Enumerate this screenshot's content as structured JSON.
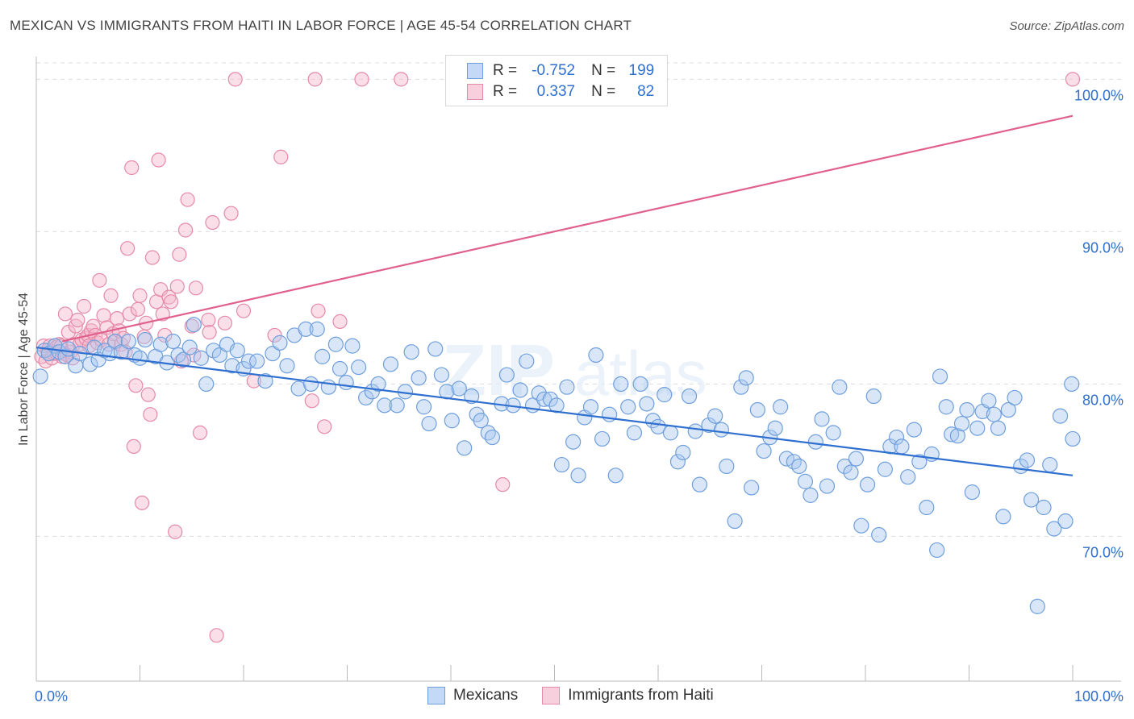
{
  "title": "MEXICAN VS IMMIGRANTS FROM HAITI IN LABOR FORCE | AGE 45-54 CORRELATION CHART",
  "source": "Source: ZipAtlas.com",
  "legend": {
    "rows": [
      {
        "r_label": "R =",
        "r_value": "-0.752",
        "n_label": "N =",
        "n_value": "199"
      },
      {
        "r_label": "R =",
        "r_value": "0.337",
        "n_label": "N =",
        "n_value": "82"
      }
    ]
  },
  "bottom_legend": [
    "Mexicans",
    "Immigrants from Haiti"
  ],
  "colors": {
    "blue_fill": "#a9c8f0",
    "blue_stroke": "#6f9fdc",
    "blue_line": "#2f6fcf",
    "pink_fill": "#f5b8cb",
    "pink_stroke": "#e58aa8",
    "pink_line": "#e0608e",
    "axis_label": "#2f6fcf",
    "grid": "#dcdcdc"
  },
  "chart_data": {
    "type": "scatter",
    "title": "MEXICAN VS IMMIGRANTS FROM HAITI IN LABOR FORCE | AGE 45-54 CORRELATION CHART",
    "xlabel": "",
    "ylabel": "In Labor Force | Age 45-54",
    "xlim": [
      0,
      100
    ],
    "ylim": [
      60.5,
      101.5
    ],
    "x_tick_labels": [
      "0.0%",
      "100.0%"
    ],
    "y_ticks": [
      70,
      80,
      90,
      100
    ],
    "y_tick_labels": [
      "70.0%",
      "80.0%",
      "90.0%",
      "100.0%"
    ],
    "grid": true,
    "legend_position": "top-center",
    "series": [
      {
        "name": "Mexicans",
        "color": "#a9c8f0",
        "trend": {
          "x": [
            0,
            100
          ],
          "y": [
            82.4,
            74.0
          ]
        },
        "points": [
          [
            0.4,
            80.5
          ],
          [
            0.8,
            82.2
          ],
          [
            1.2,
            82.0
          ],
          [
            1.8,
            82.5
          ],
          [
            2.2,
            82.1
          ],
          [
            2.8,
            81.8
          ],
          [
            3.1,
            82.3
          ],
          [
            3.8,
            81.2
          ],
          [
            4.2,
            82.0
          ],
          [
            5.2,
            81.3
          ],
          [
            5.6,
            82.4
          ],
          [
            6.0,
            81.6
          ],
          [
            6.6,
            82.2
          ],
          [
            7.1,
            82.0
          ],
          [
            7.6,
            82.8
          ],
          [
            8.2,
            82.1
          ],
          [
            8.9,
            82.8
          ],
          [
            9.5,
            81.9
          ],
          [
            10.0,
            81.7
          ],
          [
            10.5,
            82.9
          ],
          [
            11.5,
            81.8
          ],
          [
            12.0,
            82.6
          ],
          [
            12.6,
            81.4
          ],
          [
            13.2,
            82.8
          ],
          [
            13.7,
            81.9
          ],
          [
            14.2,
            81.6
          ],
          [
            14.8,
            82.4
          ],
          [
            15.2,
            83.9
          ],
          [
            15.9,
            81.7
          ],
          [
            16.4,
            80.0
          ],
          [
            17.1,
            82.2
          ],
          [
            17.7,
            81.9
          ],
          [
            18.4,
            82.6
          ],
          [
            18.9,
            81.2
          ],
          [
            19.4,
            82.2
          ],
          [
            20.0,
            81.0
          ],
          [
            20.5,
            81.5
          ],
          [
            21.3,
            81.5
          ],
          [
            22.1,
            80.2
          ],
          [
            22.8,
            82.0
          ],
          [
            23.5,
            82.7
          ],
          [
            24.2,
            81.2
          ],
          [
            24.9,
            83.2
          ],
          [
            25.3,
            79.7
          ],
          [
            26.0,
            83.6
          ],
          [
            26.5,
            80.0
          ],
          [
            27.1,
            83.6
          ],
          [
            27.6,
            81.8
          ],
          [
            28.2,
            79.8
          ],
          [
            28.9,
            82.6
          ],
          [
            29.3,
            81.0
          ],
          [
            29.9,
            80.1
          ],
          [
            30.5,
            82.5
          ],
          [
            31.1,
            81.1
          ],
          [
            31.8,
            79.1
          ],
          [
            32.4,
            79.5
          ],
          [
            33.0,
            80.0
          ],
          [
            33.6,
            78.6
          ],
          [
            34.2,
            81.3
          ],
          [
            34.8,
            78.6
          ],
          [
            35.6,
            79.5
          ],
          [
            36.2,
            82.1
          ],
          [
            36.9,
            80.4
          ],
          [
            37.4,
            78.5
          ],
          [
            37.9,
            77.4
          ],
          [
            38.5,
            82.3
          ],
          [
            39.1,
            80.6
          ],
          [
            39.6,
            79.5
          ],
          [
            40.1,
            77.6
          ],
          [
            40.8,
            79.7
          ],
          [
            41.3,
            75.8
          ],
          [
            42.0,
            79.2
          ],
          [
            42.5,
            78.0
          ],
          [
            42.9,
            77.6
          ],
          [
            43.6,
            76.8
          ],
          [
            44.0,
            76.5
          ],
          [
            44.9,
            78.7
          ],
          [
            45.4,
            80.6
          ],
          [
            46.0,
            78.6
          ],
          [
            46.7,
            79.6
          ],
          [
            47.3,
            81.5
          ],
          [
            47.9,
            78.6
          ],
          [
            48.5,
            79.4
          ],
          [
            49.0,
            79.0
          ],
          [
            49.6,
            79.0
          ],
          [
            50.2,
            78.6
          ],
          [
            50.7,
            74.7
          ],
          [
            51.2,
            79.8
          ],
          [
            51.8,
            76.2
          ],
          [
            52.3,
            74.0
          ],
          [
            52.9,
            77.8
          ],
          [
            53.5,
            78.5
          ],
          [
            54.0,
            81.9
          ],
          [
            54.6,
            76.4
          ],
          [
            55.3,
            78.0
          ],
          [
            55.9,
            74.0
          ],
          [
            56.4,
            80.0
          ],
          [
            57.1,
            78.5
          ],
          [
            57.7,
            76.8
          ],
          [
            58.3,
            80.0
          ],
          [
            58.9,
            78.7
          ],
          [
            59.5,
            77.6
          ],
          [
            60.0,
            77.2
          ],
          [
            60.6,
            79.3
          ],
          [
            61.2,
            76.8
          ],
          [
            61.9,
            74.9
          ],
          [
            62.4,
            75.5
          ],
          [
            63.0,
            79.2
          ],
          [
            63.6,
            76.9
          ],
          [
            64.0,
            73.4
          ],
          [
            64.9,
            77.3
          ],
          [
            65.5,
            77.9
          ],
          [
            66.1,
            77.0
          ],
          [
            66.6,
            74.6
          ],
          [
            67.4,
            71.0
          ],
          [
            68.0,
            79.8
          ],
          [
            68.5,
            80.4
          ],
          [
            69.0,
            73.2
          ],
          [
            69.6,
            78.3
          ],
          [
            70.2,
            75.6
          ],
          [
            70.8,
            76.5
          ],
          [
            71.3,
            77.1
          ],
          [
            71.8,
            78.5
          ],
          [
            72.4,
            75.1
          ],
          [
            73.1,
            74.9
          ],
          [
            73.6,
            74.6
          ],
          [
            74.2,
            73.6
          ],
          [
            74.7,
            72.7
          ],
          [
            75.2,
            76.2
          ],
          [
            75.8,
            77.7
          ],
          [
            76.3,
            73.3
          ],
          [
            76.9,
            76.8
          ],
          [
            77.5,
            79.8
          ],
          [
            78.0,
            74.6
          ],
          [
            78.6,
            74.2
          ],
          [
            79.1,
            75.1
          ],
          [
            79.6,
            70.7
          ],
          [
            80.2,
            73.4
          ],
          [
            80.8,
            79.2
          ],
          [
            81.3,
            70.1
          ],
          [
            81.9,
            74.4
          ],
          [
            82.4,
            75.9
          ],
          [
            83.0,
            76.5
          ],
          [
            83.5,
            75.9
          ],
          [
            84.1,
            73.9
          ],
          [
            84.7,
            77.0
          ],
          [
            85.2,
            74.9
          ],
          [
            85.9,
            71.9
          ],
          [
            86.4,
            75.4
          ],
          [
            86.9,
            69.1
          ],
          [
            87.2,
            80.5
          ],
          [
            87.8,
            78.5
          ],
          [
            88.3,
            76.7
          ],
          [
            88.9,
            76.6
          ],
          [
            89.3,
            77.4
          ],
          [
            89.8,
            78.3
          ],
          [
            90.3,
            72.9
          ],
          [
            90.8,
            77.1
          ],
          [
            91.3,
            78.2
          ],
          [
            91.9,
            78.9
          ],
          [
            92.4,
            78.0
          ],
          [
            92.8,
            77.1
          ],
          [
            93.3,
            71.3
          ],
          [
            93.8,
            78.3
          ],
          [
            94.4,
            79.1
          ],
          [
            95.0,
            74.6
          ],
          [
            95.6,
            75.0
          ],
          [
            96.0,
            72.4
          ],
          [
            96.6,
            65.4
          ],
          [
            97.2,
            71.9
          ],
          [
            97.8,
            74.7
          ],
          [
            98.2,
            70.5
          ],
          [
            98.8,
            77.9
          ],
          [
            99.3,
            71.0
          ],
          [
            99.9,
            80.0
          ],
          [
            100.0,
            76.4
          ]
        ]
      },
      {
        "name": "Immigrants from Haiti",
        "color": "#f5b8cb",
        "trend": {
          "x": [
            2.5,
            100
          ],
          "y": [
            82.8,
            97.6
          ]
        },
        "points": [
          [
            0.5,
            81.8
          ],
          [
            0.7,
            82.5
          ],
          [
            0.9,
            81.5
          ],
          [
            1.1,
            82.2
          ],
          [
            1.3,
            82.5
          ],
          [
            1.5,
            81.7
          ],
          [
            1.7,
            82.0
          ],
          [
            1.9,
            82.4
          ],
          [
            2.0,
            82.0
          ],
          [
            2.2,
            82.6
          ],
          [
            2.4,
            82.5
          ],
          [
            2.5,
            81.8
          ],
          [
            2.7,
            82.0
          ],
          [
            2.8,
            84.6
          ],
          [
            3.0,
            81.9
          ],
          [
            3.1,
            83.4
          ],
          [
            3.3,
            82.1
          ],
          [
            3.5,
            81.7
          ],
          [
            3.6,
            82.6
          ],
          [
            3.8,
            83.8
          ],
          [
            4.0,
            84.2
          ],
          [
            4.2,
            82.6
          ],
          [
            4.4,
            82.9
          ],
          [
            4.6,
            85.1
          ],
          [
            4.8,
            83.0
          ],
          [
            5.0,
            83.2
          ],
          [
            5.1,
            82.5
          ],
          [
            5.3,
            83.5
          ],
          [
            5.5,
            83.8
          ],
          [
            5.7,
            83.2
          ],
          [
            5.9,
            82.7
          ],
          [
            6.1,
            86.8
          ],
          [
            6.3,
            82.9
          ],
          [
            6.5,
            84.5
          ],
          [
            6.8,
            83.7
          ],
          [
            7.0,
            82.6
          ],
          [
            7.2,
            85.8
          ],
          [
            7.4,
            83.3
          ],
          [
            7.6,
            82.8
          ],
          [
            7.8,
            84.3
          ],
          [
            8.0,
            83.5
          ],
          [
            8.2,
            82.6
          ],
          [
            8.4,
            83.0
          ],
          [
            8.6,
            82.1
          ],
          [
            8.8,
            88.9
          ],
          [
            9.0,
            84.6
          ],
          [
            9.2,
            94.2
          ],
          [
            9.4,
            75.9
          ],
          [
            9.6,
            79.9
          ],
          [
            9.8,
            84.9
          ],
          [
            10.0,
            85.8
          ],
          [
            10.2,
            72.2
          ],
          [
            10.4,
            83.1
          ],
          [
            10.6,
            84.0
          ],
          [
            10.8,
            79.3
          ],
          [
            11.0,
            78.0
          ],
          [
            11.2,
            88.3
          ],
          [
            11.6,
            85.4
          ],
          [
            11.8,
            94.7
          ],
          [
            12.0,
            86.2
          ],
          [
            12.2,
            84.6
          ],
          [
            12.4,
            83.2
          ],
          [
            12.8,
            85.7
          ],
          [
            13.0,
            85.4
          ],
          [
            13.4,
            70.3
          ],
          [
            13.6,
            86.4
          ],
          [
            13.8,
            88.5
          ],
          [
            14.0,
            81.5
          ],
          [
            14.4,
            90.1
          ],
          [
            14.6,
            92.1
          ],
          [
            15.0,
            83.8
          ],
          [
            15.2,
            81.9
          ],
          [
            15.4,
            86.3
          ],
          [
            15.8,
            76.8
          ],
          [
            16.6,
            84.2
          ],
          [
            16.7,
            83.4
          ],
          [
            17.0,
            90.6
          ],
          [
            17.4,
            63.5
          ],
          [
            18.2,
            84.0
          ],
          [
            18.8,
            91.2
          ],
          [
            19.2,
            100.0
          ],
          [
            20.0,
            84.8
          ],
          [
            21.0,
            80.2
          ],
          [
            23.0,
            83.2
          ],
          [
            23.6,
            94.9
          ],
          [
            26.6,
            78.9
          ],
          [
            26.9,
            100.0
          ],
          [
            27.2,
            84.8
          ],
          [
            27.8,
            77.2
          ],
          [
            29.3,
            84.1
          ],
          [
            31.4,
            100.0
          ],
          [
            35.2,
            100.0
          ],
          [
            45.0,
            73.4
          ],
          [
            100.0,
            100.0
          ]
        ]
      }
    ]
  }
}
